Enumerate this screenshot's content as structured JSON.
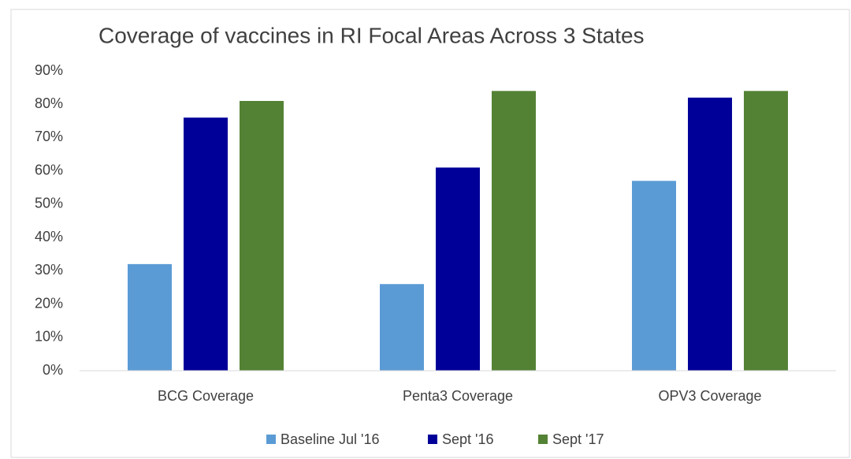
{
  "chart_data": {
    "type": "bar",
    "title": "Coverage of vaccines in RI Focal Areas Across 3 States",
    "categories": [
      "BCG Coverage",
      "Penta3 Coverage",
      "OPV3 Coverage"
    ],
    "series": [
      {
        "name": "Baseline Jul '16",
        "color": "#5b9bd5",
        "values": [
          32,
          26,
          57
        ]
      },
      {
        "name": "Sept '16",
        "color": "#000099",
        "values": [
          76,
          61,
          82
        ]
      },
      {
        "name": "Sept '17",
        "color": "#548235",
        "values": [
          81,
          84,
          84
        ]
      }
    ],
    "ylim": [
      0,
      90
    ],
    "yticks": [
      {
        "value": 0,
        "label": "0%"
      },
      {
        "value": 10,
        "label": "10%"
      },
      {
        "value": 20,
        "label": "20%"
      },
      {
        "value": 30,
        "label": "30%"
      },
      {
        "value": 40,
        "label": "40%"
      },
      {
        "value": 50,
        "label": "50%"
      },
      {
        "value": 60,
        "label": "60%"
      },
      {
        "value": 70,
        "label": "70%"
      },
      {
        "value": 80,
        "label": "80%"
      },
      {
        "value": 90,
        "label": "90%"
      }
    ],
    "grid": false,
    "legend": "bottom"
  }
}
